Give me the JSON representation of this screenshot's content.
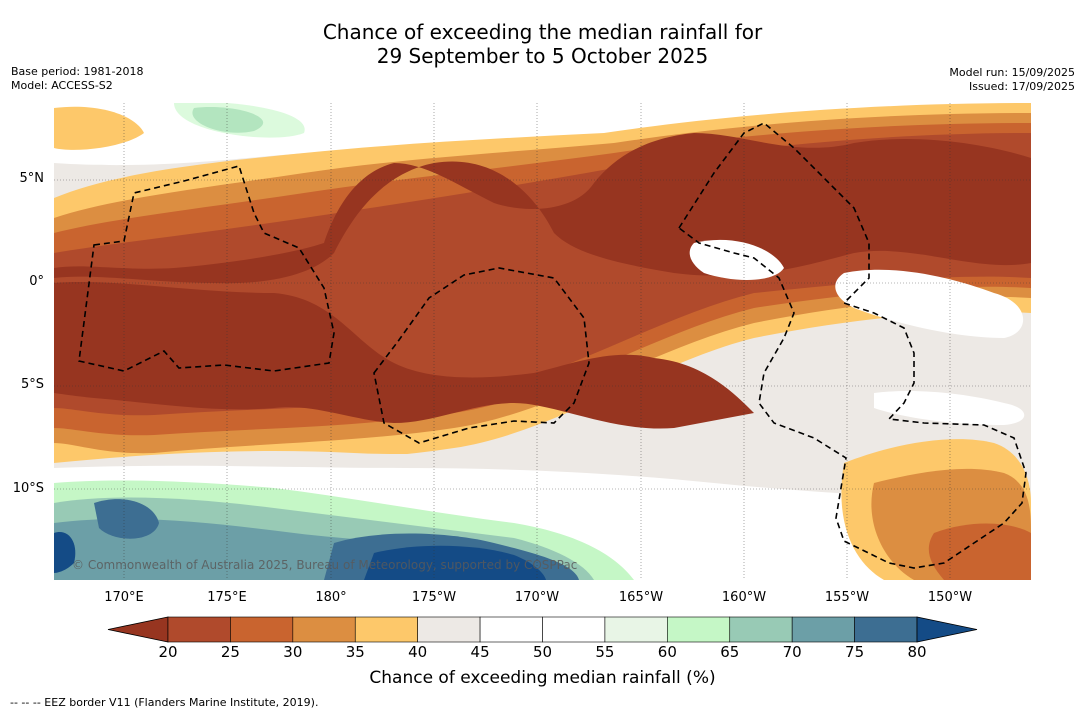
{
  "header": {
    "title_line1": "Chance of exceeding the median rainfall for",
    "title_line2": "29 September to 5 October 2025",
    "base_period": "Base period: 1981-2018",
    "model": "Model: ACCESS-S2",
    "model_run": "Model run: 15/09/2025",
    "issued": "Issued: 17/09/2025"
  },
  "map": {
    "lat_labels": [
      "5°N",
      "0°",
      "5°S",
      "10°S"
    ],
    "lon_labels": [
      "170°E",
      "175°E",
      "180°",
      "175°W",
      "170°W",
      "165°W",
      "160°W",
      "155°W",
      "150°W"
    ],
    "copyright": "© Commonwealth of Australia 2025, Bureau of Meteorology, supported by COSPPac"
  },
  "colorbar": {
    "ticks": [
      "20",
      "25",
      "30",
      "35",
      "40",
      "45",
      "50",
      "55",
      "60",
      "65",
      "70",
      "75",
      "80"
    ],
    "colors": [
      "#973520",
      "#b04a2c",
      "#c9642f",
      "#dc8e41",
      "#fdc86a",
      "#ede9e5",
      "#ffffff",
      "#ffffff",
      "#e8f5e6",
      "#c5f7c6",
      "#98cab5",
      "#6c9fa7",
      "#3d6e92",
      "#144b86"
    ],
    "title": "Chance of exceeding median rainfall (%)"
  },
  "footer": {
    "eez_note": "--  --  -- EEZ border V11 (Flanders Marine Institute, 2019)."
  }
}
